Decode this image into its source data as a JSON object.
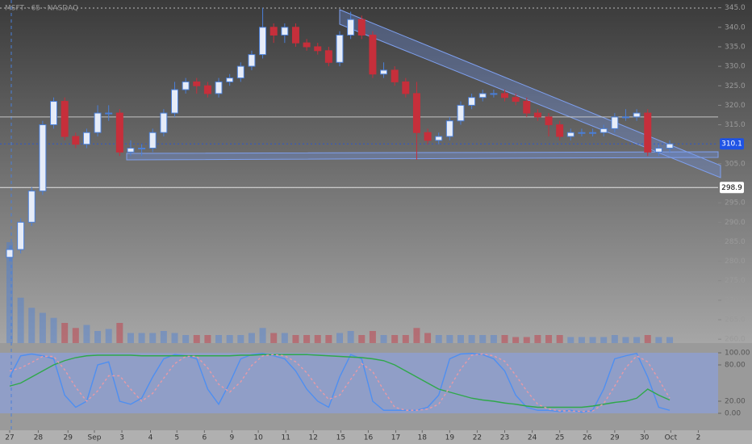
{
  "chart_data": {
    "type": "candlestick",
    "title": "MSFT · 65 · NASDAQ",
    "xlim": [
      -0.88,
      64.4
    ],
    "xticks": [
      {
        "value": 0,
        "label": "27"
      },
      {
        "value": 2.6,
        "label": "28"
      },
      {
        "value": 5.3,
        "label": "29"
      },
      {
        "value": 7.7,
        "label": "Sep"
      },
      {
        "value": 10.2,
        "label": "3"
      },
      {
        "value": 12.8,
        "label": "4"
      },
      {
        "value": 15.2,
        "label": "5"
      },
      {
        "value": 17.7,
        "label": "6"
      },
      {
        "value": 20.2,
        "label": "9"
      },
      {
        "value": 22.6,
        "label": "10"
      },
      {
        "value": 25.1,
        "label": "11"
      },
      {
        "value": 27.6,
        "label": "12"
      },
      {
        "value": 30.1,
        "label": "15"
      },
      {
        "value": 32.6,
        "label": "16"
      },
      {
        "value": 35.1,
        "label": "17"
      },
      {
        "value": 37.5,
        "label": "18"
      },
      {
        "value": 40,
        "label": "19"
      },
      {
        "value": 42.5,
        "label": "22"
      },
      {
        "value": 45,
        "label": "23"
      },
      {
        "value": 47.5,
        "label": "24"
      },
      {
        "value": 50,
        "label": "25"
      },
      {
        "value": 52.5,
        "label": "26"
      },
      {
        "value": 55,
        "label": "29"
      },
      {
        "value": 57.7,
        "label": "30"
      },
      {
        "value": 60.1,
        "label": "Oct"
      },
      {
        "value": 62.6,
        "label": "2"
      }
    ],
    "ylim": [
      259,
      347
    ],
    "yticks": [
      {
        "value": 345,
        "label": "345.0"
      },
      {
        "value": 340,
        "label": "340.0"
      },
      {
        "value": 335,
        "label": "335.0"
      },
      {
        "value": 330,
        "label": "330.0"
      },
      {
        "value": 325,
        "label": "325.0"
      },
      {
        "value": 320,
        "label": "320.0"
      },
      {
        "value": 315,
        "label": "315.0"
      },
      {
        "value": 305,
        "label": "305.0"
      },
      {
        "value": 295,
        "label": "295.0"
      },
      {
        "value": 290,
        "label": "290.0"
      },
      {
        "value": 285,
        "label": "285.0"
      },
      {
        "value": 280,
        "label": "280.0"
      },
      {
        "value": 275,
        "label": "275.0"
      },
      {
        "value": 270,
        "label": "270.0"
      },
      {
        "value": 265,
        "label": "265.0"
      },
      {
        "value": 260,
        "label": "260.0"
      }
    ],
    "up_color": "#4a7fd8",
    "down_color": "#c62f3b",
    "open": [
      281,
      283,
      290,
      298,
      315,
      321,
      312,
      310,
      313,
      318,
      318,
      308,
      309,
      309,
      313,
      318,
      324,
      326,
      325,
      323,
      326,
      327,
      330,
      333,
      340,
      338,
      340,
      336,
      335,
      334,
      331,
      338,
      342,
      338,
      328,
      329,
      326,
      323,
      313,
      311,
      312,
      316,
      320,
      322,
      323,
      323,
      322,
      321,
      318,
      317,
      315,
      312,
      313,
      313,
      313,
      314,
      317,
      317,
      318,
      308,
      309
    ],
    "high": [
      284,
      291,
      299,
      316,
      322,
      322,
      313,
      314,
      320,
      320,
      319,
      311,
      310,
      314,
      319,
      326,
      327,
      327,
      326,
      327,
      328,
      331,
      334,
      345,
      341,
      341,
      341,
      337,
      336,
      335,
      339,
      344,
      343,
      339,
      331,
      330,
      327,
      326,
      314,
      313,
      317,
      321,
      323,
      324,
      324,
      324,
      323,
      322,
      319,
      318,
      316,
      314,
      314,
      314,
      315,
      318,
      319,
      319,
      319,
      310,
      311
    ],
    "low": [
      280,
      282,
      289,
      297,
      314,
      311,
      309,
      309,
      312,
      316,
      307,
      307,
      307,
      308,
      312,
      317,
      323,
      323,
      322,
      322,
      325,
      326,
      329,
      332,
      336,
      336,
      335,
      334,
      333,
      330,
      330,
      337,
      337,
      327,
      327,
      325,
      322,
      306,
      310,
      310,
      311,
      315,
      319,
      321,
      322,
      321,
      320,
      317,
      316,
      312,
      311,
      311,
      312,
      312,
      312,
      313,
      316,
      316,
      307,
      307,
      308
    ],
    "close": [
      283,
      290,
      298,
      315,
      321,
      312,
      310,
      313,
      318,
      318,
      308,
      309,
      309,
      313,
      318,
      324,
      326,
      325,
      323,
      326,
      327,
      330,
      333,
      340,
      338,
      340,
      336,
      335,
      334,
      331,
      338,
      342,
      338,
      328,
      329,
      326,
      323,
      313,
      311,
      312,
      316,
      320,
      322,
      323,
      323,
      322,
      321,
      318,
      317,
      315,
      312,
      313,
      313,
      313,
      314,
      317,
      317,
      318,
      308,
      309,
      310.1
    ],
    "volume": [
      100,
      45,
      35,
      30,
      25,
      20,
      15,
      18,
      12,
      14,
      20,
      10,
      10,
      10,
      12,
      10,
      8,
      8,
      8,
      8,
      8,
      8,
      10,
      15,
      10,
      10,
      8,
      8,
      8,
      8,
      10,
      12,
      8,
      12,
      8,
      8,
      8,
      15,
      10,
      8,
      8,
      8,
      8,
      8,
      8,
      8,
      6,
      6,
      8,
      8,
      8,
      6,
      6,
      6,
      6,
      8,
      6,
      6,
      8,
      6,
      6
    ],
    "price_lines": [
      {
        "value": 310.1,
        "label": "310.1",
        "color": "#1e53e5"
      },
      {
        "value": 298.9,
        "label": "298.9",
        "color": "#ffffff"
      },
      {
        "value": 317,
        "color": "#dddddd"
      }
    ],
    "oscillator": {
      "ylim": [
        0,
        100
      ],
      "yticks": [
        {
          "value": 100,
          "label": "100.00"
        },
        {
          "value": 80,
          "label": "80.00"
        },
        {
          "value": 20,
          "label": "20.00"
        },
        {
          "value": 0,
          "label": "0.00"
        }
      ],
      "series": [
        {
          "color": "#4f8ff0",
          "values": [
            60,
            95,
            98,
            95,
            90,
            30,
            10,
            20,
            80,
            85,
            20,
            15,
            25,
            60,
            90,
            97,
            95,
            90,
            40,
            15,
            50,
            90,
            97,
            99,
            95,
            90,
            70,
            40,
            20,
            10,
            60,
            97,
            90,
            20,
            5,
            5,
            5,
            5,
            10,
            30,
            90,
            98,
            99,
            97,
            90,
            70,
            30,
            10,
            5,
            5,
            3,
            5,
            2,
            5,
            40,
            90,
            95,
            99,
            60,
            10,
            5
          ]
        },
        {
          "color": "#2fa84a",
          "values": [
            45,
            50,
            60,
            70,
            80,
            87,
            92,
            95,
            96,
            96,
            96,
            96,
            95,
            95,
            95,
            95,
            95,
            95,
            95,
            95,
            95,
            96,
            96,
            97,
            97,
            97,
            97,
            97,
            96,
            95,
            94,
            93,
            92,
            90,
            87,
            80,
            70,
            60,
            50,
            40,
            35,
            30,
            25,
            22,
            20,
            17,
            15,
            12,
            10,
            10,
            10,
            10,
            10,
            12,
            15,
            18,
            20,
            25,
            40,
            30,
            22
          ]
        },
        {
          "color": "#e89aa6",
          "dashed": true,
          "values": [
            70,
            75,
            84,
            94,
            94,
            72,
            43,
            20,
            37,
            62,
            62,
            40,
            20,
            33,
            58,
            82,
            94,
            94,
            75,
            48,
            35,
            52,
            79,
            95,
            97,
            95,
            85,
            67,
            43,
            23,
            30,
            56,
            82,
            69,
            38,
            10,
            5,
            5,
            7,
            15,
            43,
            73,
            96,
            98,
            95,
            86,
            63,
            37,
            15,
            7,
            4,
            4,
            3,
            4,
            16,
            45,
            75,
            95,
            85,
            56,
            25
          ]
        }
      ]
    }
  }
}
